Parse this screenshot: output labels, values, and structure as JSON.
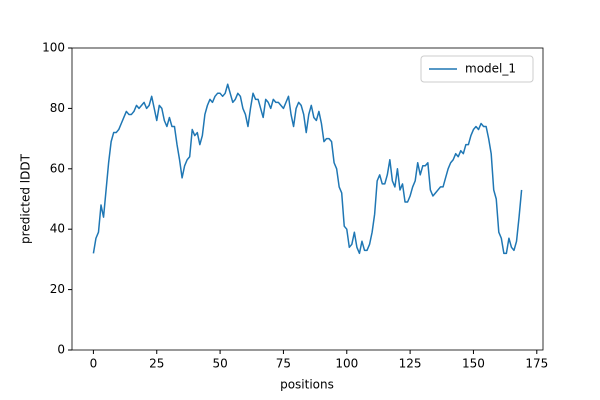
{
  "chart_data": {
    "type": "line",
    "xlabel": "positions",
    "ylabel": "predicted lDDT",
    "x": [
      0,
      1,
      2,
      3,
      4,
      5,
      6,
      7,
      8,
      9,
      10,
      11,
      12,
      13,
      14,
      15,
      16,
      17,
      18,
      19,
      20,
      21,
      22,
      23,
      24,
      25,
      26,
      27,
      28,
      29,
      30,
      31,
      32,
      33,
      34,
      35,
      36,
      37,
      38,
      39,
      40,
      41,
      42,
      43,
      44,
      45,
      46,
      47,
      48,
      49,
      50,
      51,
      52,
      53,
      54,
      55,
      56,
      57,
      58,
      59,
      60,
      61,
      62,
      63,
      64,
      65,
      66,
      67,
      68,
      69,
      70,
      71,
      72,
      73,
      74,
      75,
      76,
      77,
      78,
      79,
      80,
      81,
      82,
      83,
      84,
      85,
      86,
      87,
      88,
      89,
      90,
      91,
      92,
      93,
      94,
      95,
      96,
      97,
      98,
      99,
      100,
      101,
      102,
      103,
      104,
      105,
      106,
      107,
      108,
      109,
      110,
      111,
      112,
      113,
      114,
      115,
      116,
      117,
      118,
      119,
      120,
      121,
      122,
      123,
      124,
      125,
      126,
      127,
      128,
      129,
      130,
      131,
      132,
      133,
      134,
      135,
      136,
      137,
      138,
      139,
      140,
      141,
      142,
      143,
      144,
      145,
      146,
      147,
      148,
      149,
      150,
      151,
      152,
      153,
      154,
      155,
      156,
      157,
      158,
      159,
      160,
      161,
      162,
      163,
      164,
      165,
      166,
      167,
      168,
      169
    ],
    "series": [
      {
        "name": "model_1",
        "color": "#1f77b4",
        "values": [
          32,
          37,
          39,
          48,
          44,
          53,
          62,
          69,
          72,
          72,
          73,
          75,
          77,
          79,
          78,
          78,
          79,
          81,
          80,
          81,
          82,
          80,
          81,
          84,
          80,
          76,
          81,
          80,
          76,
          74,
          77,
          74,
          74,
          68,
          63,
          57,
          61,
          63,
          64,
          73,
          71,
          72,
          68,
          71,
          78,
          81,
          83,
          82,
          84,
          85,
          85,
          84,
          85,
          88,
          85,
          82,
          83,
          85,
          84,
          80,
          78,
          74,
          80,
          85,
          83,
          83,
          80,
          77,
          83,
          82,
          80,
          83,
          82,
          82,
          81,
          80,
          82,
          84,
          78,
          74,
          80,
          82,
          81,
          78,
          72,
          78,
          81,
          77,
          76,
          79,
          75,
          69,
          70,
          70,
          69,
          62,
          60,
          54,
          52,
          41,
          40,
          34,
          35,
          39,
          34,
          32,
          36,
          33,
          33,
          35,
          39,
          45,
          56,
          58,
          55,
          55,
          58,
          63,
          56,
          54,
          60,
          53,
          55,
          49,
          49,
          51,
          54,
          56,
          62,
          58,
          61,
          61,
          62,
          53,
          51,
          52,
          53,
          54,
          54,
          57,
          60,
          62,
          63,
          65,
          64,
          66,
          65,
          68,
          68,
          71,
          73,
          74,
          73,
          75,
          74,
          74,
          70,
          65,
          53,
          50,
          39,
          37,
          32,
          32,
          37,
          34,
          33,
          36,
          44,
          53
        ]
      }
    ],
    "xlim": [
      -8.45,
      177.45
    ],
    "xticks": [
      0,
      25,
      50,
      75,
      100,
      125,
      150,
      175
    ],
    "ylim": [
      0,
      100
    ],
    "yticks": [
      0,
      20,
      40,
      60,
      80,
      100
    ],
    "legend": "upper right"
  }
}
